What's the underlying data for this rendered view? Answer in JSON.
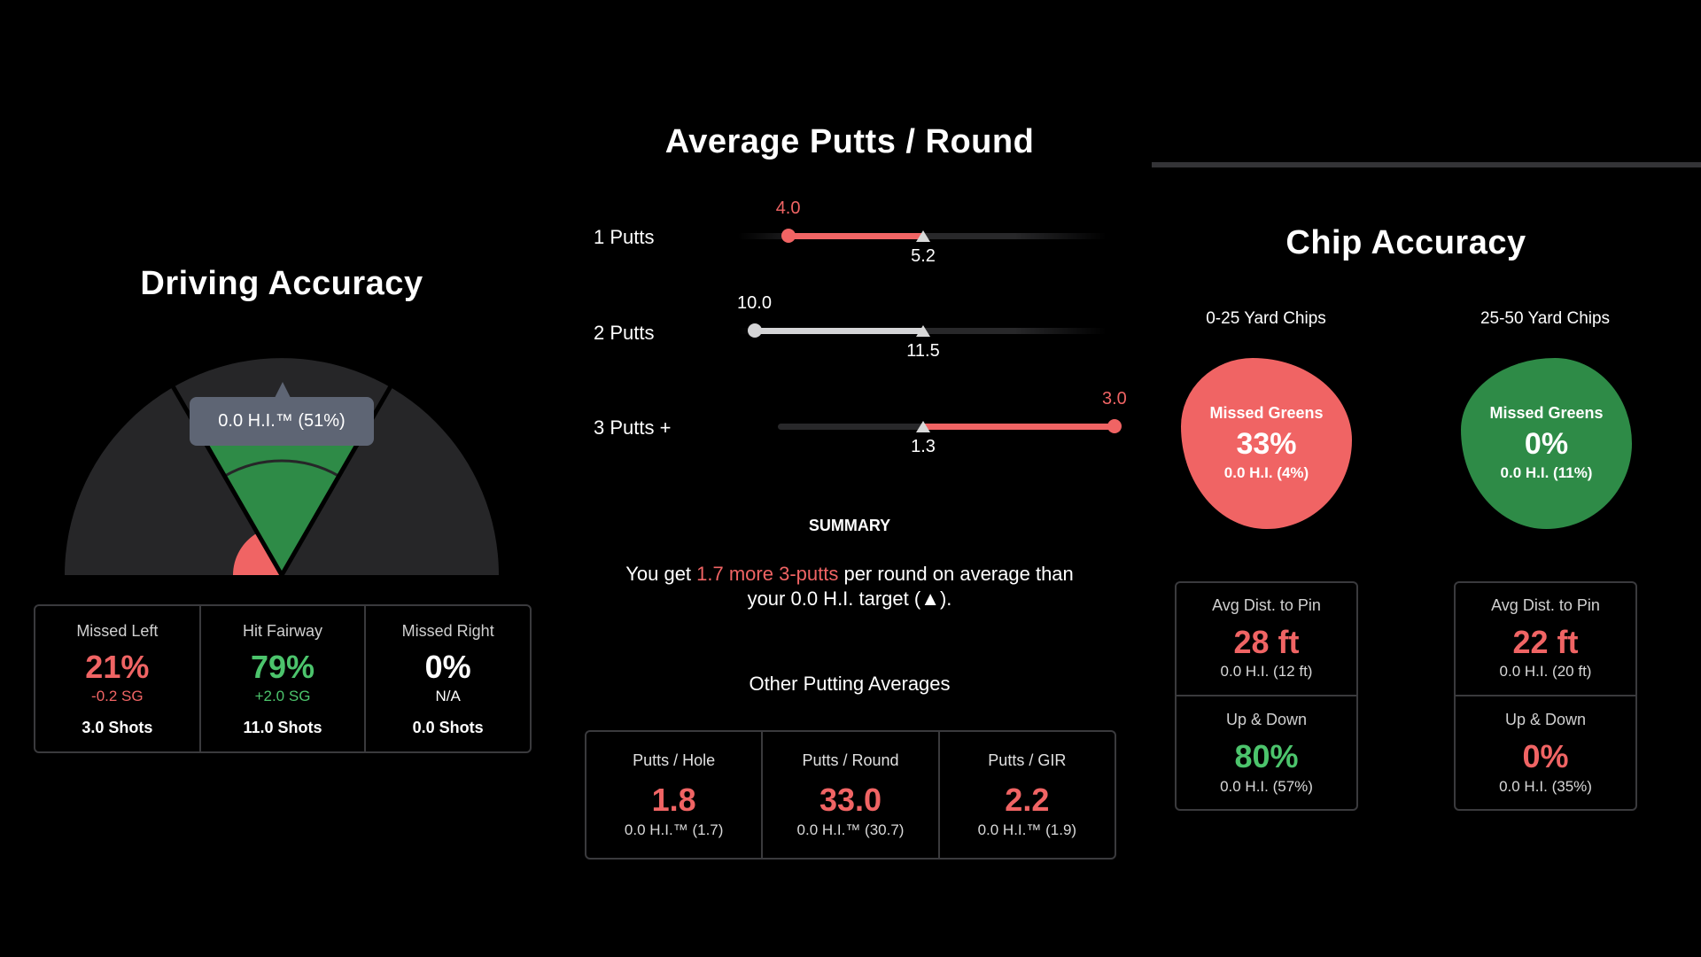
{
  "colors": {
    "red": "#f06464",
    "green_fill": "#2e8b47",
    "green_text": "#4cc46c",
    "gauge": "#262628",
    "tooltip": "#5e6574"
  },
  "driving": {
    "title": "Driving Accuracy",
    "tooltip": "0.0 H.I.™ (51%)",
    "columns": [
      {
        "label": "Missed Left",
        "value": "21%",
        "sg": "-0.2 SG",
        "shots": "3.0 Shots"
      },
      {
        "label": "Hit Fairway",
        "value": "79%",
        "sg": "+2.0 SG",
        "shots": "11.0 Shots"
      },
      {
        "label": "Missed Right",
        "value": "0%",
        "sg": "N/A",
        "shots": "0.0 Shots"
      }
    ]
  },
  "putting": {
    "title": "Average Putts / Round",
    "rows": [
      {
        "label": "1 Putts",
        "value": 4.0,
        "value_text": "4.0",
        "target": 5.2,
        "target_text": "5.2",
        "status": "worse"
      },
      {
        "label": "2 Putts",
        "value": 10.0,
        "value_text": "10.0",
        "target": 11.5,
        "target_text": "11.5",
        "status": "neutral"
      },
      {
        "label": "3 Putts +",
        "value": 3.0,
        "value_text": "3.0",
        "target": 1.3,
        "target_text": "1.3",
        "status": "worse"
      }
    ],
    "summary_heading": "SUMMARY",
    "summary_prefix": "You get ",
    "summary_highlight": "1.7 more 3-putts",
    "summary_suffix": " per round on average than",
    "summary_line2": "your 0.0 H.I. target (▲).",
    "other_heading": "Other Putting Averages",
    "other": [
      {
        "label": "Putts / Hole",
        "value": "1.8",
        "sub": "0.0 H.I.™ (1.7)"
      },
      {
        "label": "Putts / Round",
        "value": "33.0",
        "sub": "0.0 H.I.™ (30.7)"
      },
      {
        "label": "Putts / GIR",
        "value": "2.2",
        "sub": "0.0 H.I.™ (1.9)"
      }
    ]
  },
  "chip": {
    "title": "Chip Accuracy",
    "groups": [
      {
        "heading": "0-25 Yard Chips",
        "blob_label": "Missed Greens",
        "blob_value": "33%",
        "blob_sub": "0.0 H.I. (4%)",
        "blob_status": "bad",
        "dist_label": "Avg Dist. to Pin",
        "dist_value": "28 ft",
        "dist_sub": "0.0 H.I. (12 ft)",
        "ud_label": "Up & Down",
        "ud_value": "80%",
        "ud_sub": "0.0 H.I. (57%)",
        "ud_status": "good"
      },
      {
        "heading": "25-50 Yard Chips",
        "blob_label": "Missed Greens",
        "blob_value": "0%",
        "blob_sub": "0.0 H.I. (11%)",
        "blob_status": "good",
        "dist_label": "Avg Dist. to Pin",
        "dist_value": "22 ft",
        "dist_sub": "0.0 H.I. (20 ft)",
        "ud_label": "Up & Down",
        "ud_value": "0%",
        "ud_sub": "0.0 H.I. (35%)",
        "ud_status": "bad"
      }
    ]
  }
}
